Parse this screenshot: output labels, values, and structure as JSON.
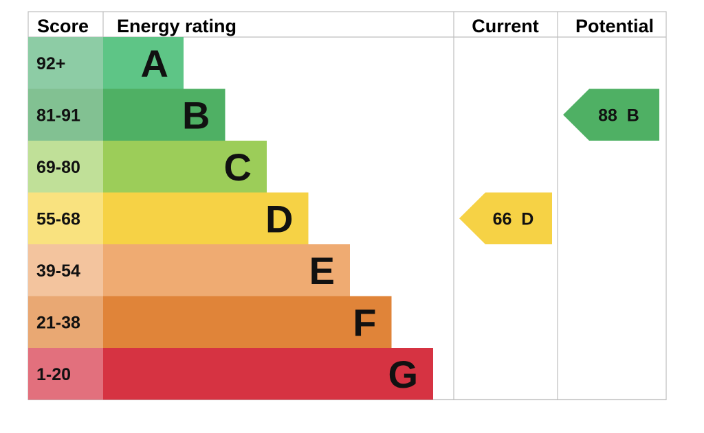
{
  "chart_data": {
    "type": "bar",
    "headers": {
      "score": "Score",
      "rating": "Energy rating",
      "current": "Current",
      "potential": "Potential"
    },
    "bands": [
      {
        "letter": "A",
        "range": "92+",
        "color": "#5ec586",
        "score_color": "#8dcca5"
      },
      {
        "letter": "B",
        "range": "81-91",
        "color": "#4fb064",
        "score_color": "#82c192"
      },
      {
        "letter": "C",
        "range": "69-80",
        "color": "#9ccd59",
        "score_color": "#c0e098"
      },
      {
        "letter": "D",
        "range": "55-68",
        "color": "#f6d245",
        "score_color": "#f9e27f"
      },
      {
        "letter": "E",
        "range": "39-54",
        "color": "#efab72",
        "score_color": "#f3c49e"
      },
      {
        "letter": "F",
        "range": "21-38",
        "color": "#e08439",
        "score_color": "#e9a873"
      },
      {
        "letter": "G",
        "range": "1-20",
        "color": "#d63342",
        "score_color": "#e2707d"
      }
    ],
    "current": {
      "value": 66,
      "band": "D",
      "label": "66  D"
    },
    "potential": {
      "value": 88,
      "band": "B",
      "label": "88  B"
    }
  }
}
